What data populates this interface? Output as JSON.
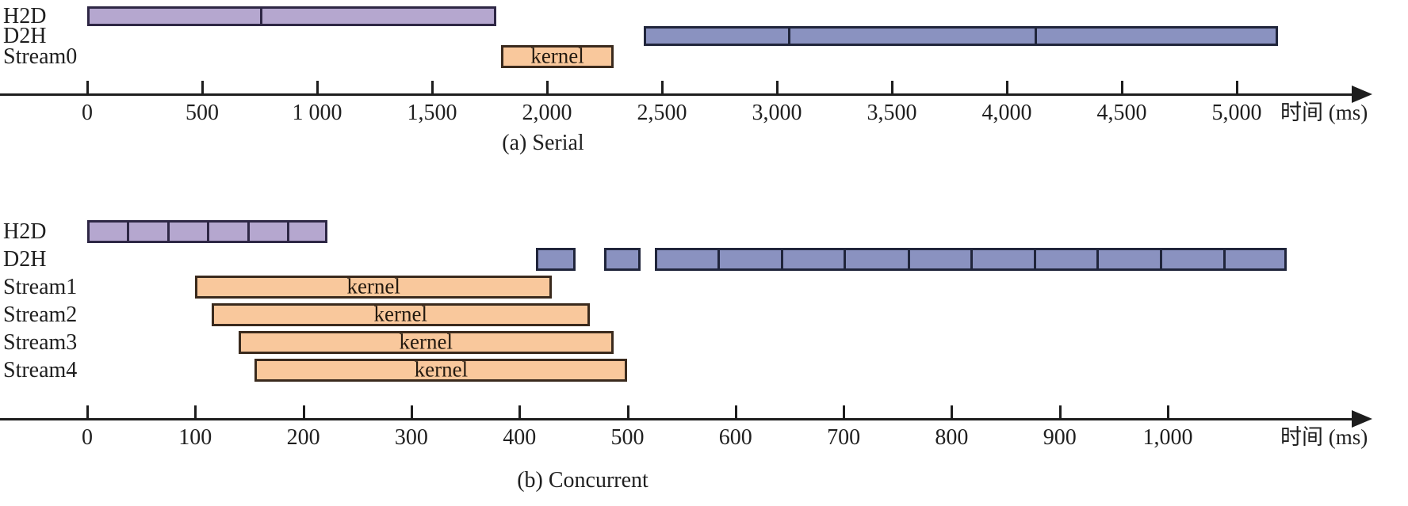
{
  "figure": {
    "description": "Timeline comparison of serial vs concurrent CUDA stream execution",
    "background": "#ffffff"
  },
  "colors": {
    "h2d_fill": "#b5a7cf",
    "h2d_stroke": "#2e2745",
    "d2h_fill": "#8a92c0",
    "d2h_stroke": "#20253b",
    "kernel_fill": "#f9c89c",
    "kernel_stroke": "#3a2a1d",
    "axis": "#1d1d1d"
  },
  "chart_data": [
    {
      "type": "gantt",
      "caption": "(a) Serial",
      "xlabel": "时间 (ms)",
      "axis": {
        "min": 0,
        "max": 5000,
        "step": 500,
        "unit": "ms",
        "tick_labels": [
          "0",
          "500",
          "1 000",
          "1,500",
          "2,000",
          "2,500",
          "3,000",
          "3,500",
          "4,000",
          "4,500",
          "5,000"
        ]
      },
      "rows": [
        {
          "label": "H2D",
          "bars": [
            {
              "kind": "h2d",
              "start": 0,
              "end": 1780,
              "dividers": [
                750
              ]
            }
          ]
        },
        {
          "label": "D2H",
          "bars": [
            {
              "kind": "d2h",
              "start": 2420,
              "end": 5180,
              "dividers": [
                3050,
                4120
              ]
            }
          ]
        },
        {
          "label": "Stream0",
          "bars": [
            {
              "kind": "kernel",
              "start": 1800,
              "end": 2290,
              "text": "kernel"
            }
          ]
        }
      ]
    },
    {
      "type": "gantt",
      "caption": "(b) Concurrent",
      "xlabel": "时间 (ms)",
      "axis": {
        "min": 0,
        "max": 1000,
        "step": 100,
        "unit": "ms",
        "tick_labels": [
          "0",
          "100",
          "200",
          "300",
          "400",
          "500",
          "600",
          "700",
          "800",
          "900",
          "1,000"
        ]
      },
      "rows": [
        {
          "label": "H2D",
          "bars": [
            {
              "kind": "h2d",
              "start": 0,
              "end": 222,
              "dividers": [
                37,
                74,
                111,
                148,
                185
              ]
            }
          ]
        },
        {
          "label": "D2H",
          "bars": [
            {
              "kind": "d2h",
              "start": 415,
              "end": 452
            },
            {
              "kind": "d2h",
              "start": 478,
              "end": 512
            },
            {
              "kind": "d2h",
              "start": 525,
              "end": 1110,
              "dividers": [
                583,
                642,
                700,
                759,
                817,
                876,
                934,
                993,
                1051
              ]
            }
          ]
        },
        {
          "label": "Stream1",
          "bars": [
            {
              "kind": "kernel",
              "start": 100,
              "end": 430,
              "text": "kernel"
            }
          ]
        },
        {
          "label": "Stream2",
          "bars": [
            {
              "kind": "kernel",
              "start": 115,
              "end": 465,
              "text": "kernel"
            }
          ]
        },
        {
          "label": "Stream3",
          "bars": [
            {
              "kind": "kernel",
              "start": 140,
              "end": 487,
              "text": "kernel"
            }
          ]
        },
        {
          "label": "Stream4",
          "bars": [
            {
              "kind": "kernel",
              "start": 155,
              "end": 500,
              "text": "kernel"
            }
          ]
        }
      ]
    }
  ]
}
